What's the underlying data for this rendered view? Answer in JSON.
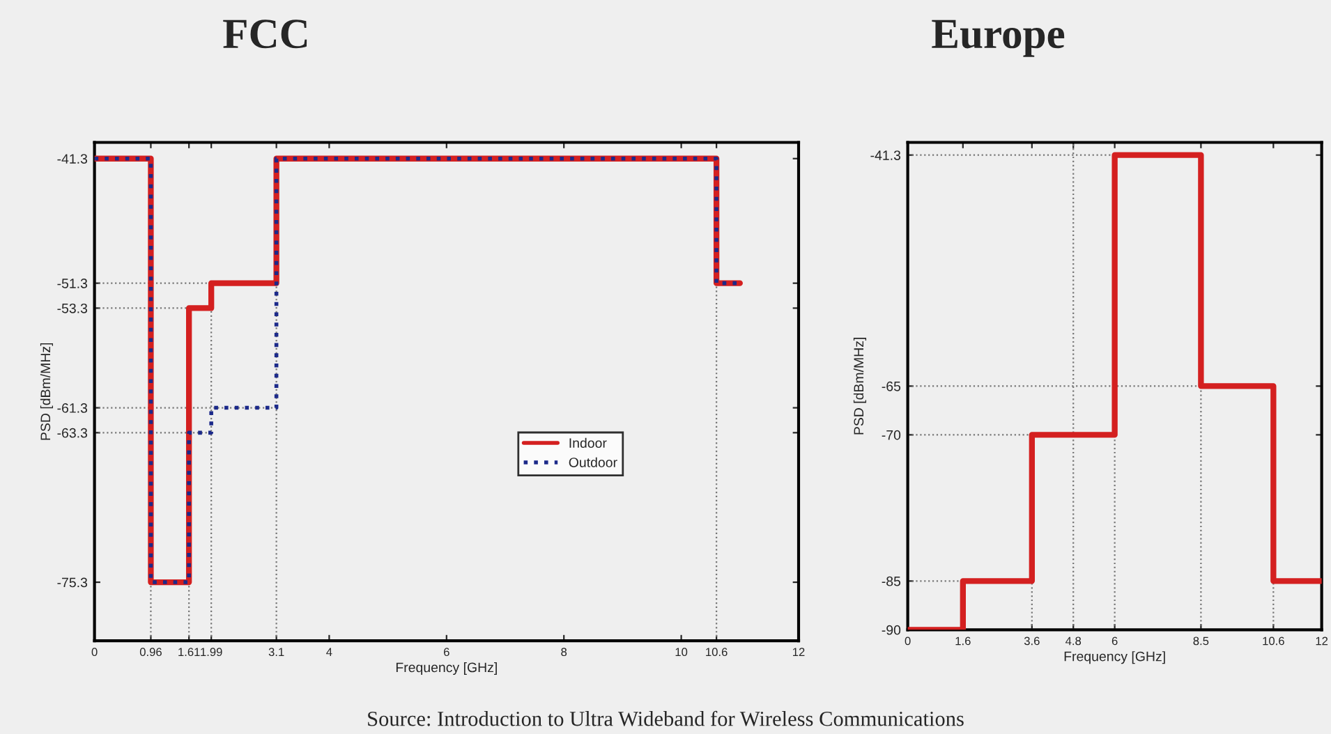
{
  "chart_data": [
    {
      "type": "step",
      "title": "FCC",
      "xlabel": "Frequency [GHz]",
      "ylabel": "PSD [dBm/MHz]",
      "xlim": [
        0,
        12
      ],
      "ylim": [
        -80,
        -40
      ],
      "xticks": [
        0,
        0.96,
        1.61,
        1.99,
        3.1,
        4,
        6,
        8,
        10,
        10.6,
        12
      ],
      "yticks": [
        -75.3,
        -63.3,
        -61.3,
        -53.3,
        -51.3,
        -41.3
      ],
      "series": [
        {
          "name": "Indoor",
          "color": "#d42020",
          "line_style": "solid",
          "x": [
            0,
            0.96,
            1.61,
            1.99,
            3.1,
            10.6,
            11
          ],
          "values": [
            -41.3,
            -75.3,
            -53.3,
            -51.3,
            -41.3,
            -51.3,
            -51.3
          ]
        },
        {
          "name": "Outdoor",
          "color": "#1c2a8a",
          "line_style": "dotted",
          "x": [
            0,
            0.96,
            1.61,
            1.99,
            3.1,
            10.6,
            11
          ],
          "values": [
            -41.3,
            -75.3,
            -63.3,
            -61.3,
            -41.3,
            -51.3,
            -51.3
          ]
        }
      ],
      "ref_lines": [
        {
          "axis": "y",
          "value": -51.3,
          "color": "#777777",
          "line_style": "dotted"
        },
        {
          "axis": "y",
          "value": -53.3,
          "color": "#777777",
          "line_style": "dotted"
        },
        {
          "axis": "y",
          "value": -61.3,
          "color": "#777777",
          "line_style": "dotted"
        },
        {
          "axis": "y",
          "value": -63.3,
          "color": "#777777",
          "line_style": "dotted"
        },
        {
          "axis": "x",
          "value": 0.96,
          "color": "#777777",
          "line_style": "dotted"
        },
        {
          "axis": "x",
          "value": 1.61,
          "color": "#777777",
          "line_style": "dotted"
        },
        {
          "axis": "x",
          "value": 1.99,
          "color": "#777777",
          "line_style": "dotted"
        },
        {
          "axis": "x",
          "value": 3.1,
          "color": "#777777",
          "line_style": "dotted"
        },
        {
          "axis": "x",
          "value": 10.6,
          "color": "#777777",
          "line_style": "dotted"
        }
      ],
      "legend": "right",
      "grid": false,
      "annotations": [
        "Source: Introduction to Ultra Wideband for Wireless Communications"
      ]
    },
    {
      "type": "step",
      "title": "Europe",
      "xlabel": "Frequency [GHz]",
      "ylabel": "PSD [dBm/MHz]",
      "xlim": [
        0,
        12
      ],
      "ylim": [
        -90,
        -40
      ],
      "xticks": [
        0,
        1.6,
        3.6,
        4.8,
        6,
        8.5,
        10.6,
        12
      ],
      "yticks": [
        -90,
        -85,
        -70,
        -65,
        -41.3
      ],
      "series": [
        {
          "color": "#d42020",
          "line_style": "solid",
          "x": [
            0,
            1.6,
            3.6,
            6,
            8.5,
            10.6,
            12
          ],
          "values": [
            -90,
            -85,
            -70,
            -41.3,
            -65,
            -85,
            -85
          ]
        }
      ],
      "ref_lines": [
        {
          "axis": "y",
          "value": -41.3,
          "color": "#777777",
          "line_style": "dotted"
        },
        {
          "axis": "y",
          "value": -65,
          "color": "#777777",
          "line_style": "dotted"
        },
        {
          "axis": "y",
          "value": -70,
          "color": "#777777",
          "line_style": "dotted"
        },
        {
          "axis": "y",
          "value": -85,
          "color": "#777777",
          "line_style": "dotted"
        },
        {
          "axis": "x",
          "value": 3.6,
          "color": "#777777",
          "line_style": "dotted"
        },
        {
          "axis": "x",
          "value": 4.8,
          "color": "#777777",
          "line_style": "dotted"
        },
        {
          "axis": "x",
          "value": 6,
          "color": "#777777",
          "line_style": "dotted"
        },
        {
          "axis": "x",
          "value": 8.5,
          "color": "#777777",
          "line_style": "dotted"
        },
        {
          "axis": "x",
          "value": 10.6,
          "color": "#777777",
          "line_style": "dotted"
        }
      ],
      "grid": false
    }
  ]
}
